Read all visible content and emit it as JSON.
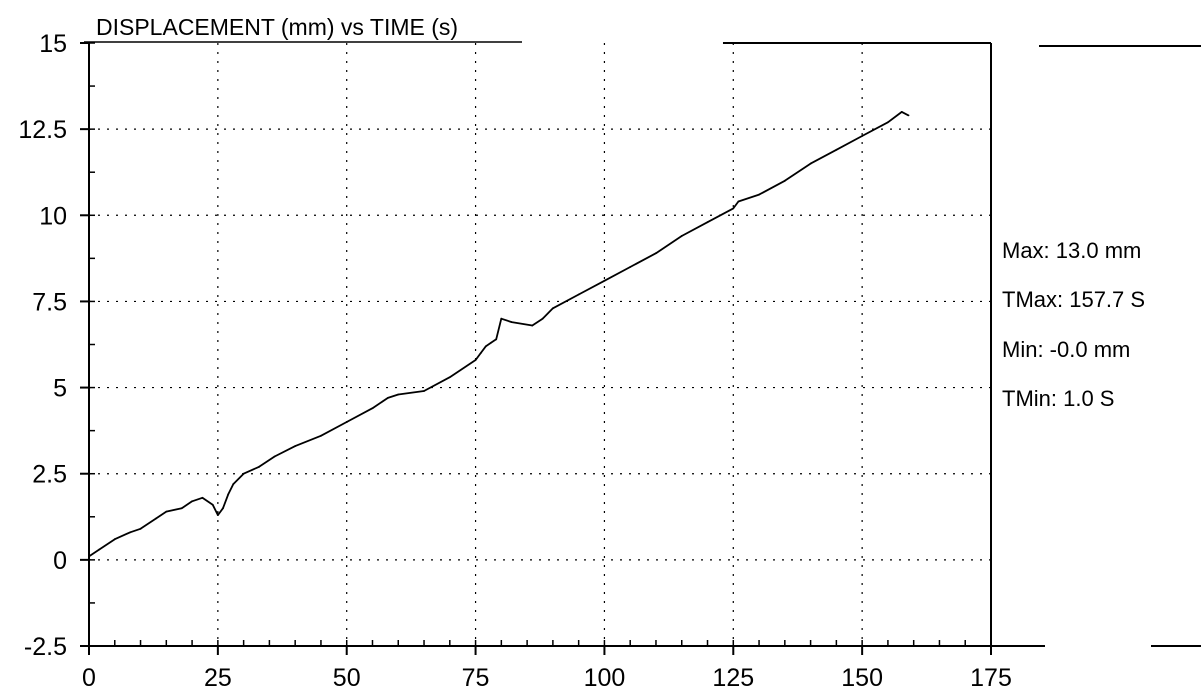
{
  "chart_data": {
    "type": "line",
    "title": "DISPLACEMENT (mm) vs TIME (s)",
    "xlabel": "",
    "ylabel": "",
    "xlim": [
      0,
      175
    ],
    "ylim": [
      -2.5,
      15
    ],
    "x_ticks": [
      0,
      25,
      50,
      75,
      100,
      125,
      150,
      175
    ],
    "x_tick_labels": [
      "0",
      "25",
      "50",
      "75",
      "100",
      "125",
      "150",
      "175"
    ],
    "y_ticks": [
      -2.5,
      0,
      2.5,
      5,
      7.5,
      10,
      12.5,
      15
    ],
    "y_tick_labels": [
      "-2.5",
      "0",
      "2.5",
      "5",
      "7.5",
      "10",
      "12.5",
      "15"
    ],
    "grid": true,
    "legend": "none",
    "series": [
      {
        "color": "#000000",
        "x": [
          0,
          2,
          5,
          8,
          10,
          13,
          15,
          18,
          20,
          22,
          24,
          25,
          26,
          27,
          28,
          30,
          33,
          36,
          40,
          45,
          50,
          55,
          58,
          60,
          65,
          70,
          75,
          76,
          77,
          78,
          79,
          80,
          82,
          86,
          88,
          90,
          95,
          100,
          105,
          110,
          115,
          120,
          125,
          126,
          130,
          135,
          140,
          145,
          150,
          155,
          157.7,
          159
        ],
        "y": [
          0.1,
          0.3,
          0.6,
          0.8,
          0.9,
          1.2,
          1.4,
          1.5,
          1.7,
          1.8,
          1.6,
          1.3,
          1.5,
          1.9,
          2.2,
          2.5,
          2.7,
          3.0,
          3.3,
          3.6,
          4.0,
          4.4,
          4.7,
          4.8,
          4.9,
          5.3,
          5.8,
          6.0,
          6.2,
          6.3,
          6.4,
          7.0,
          6.9,
          6.8,
          7.0,
          7.3,
          7.7,
          8.1,
          8.5,
          8.9,
          9.4,
          9.8,
          10.2,
          10.4,
          10.6,
          11.0,
          11.5,
          11.9,
          12.3,
          12.7,
          13.0,
          12.9
        ]
      }
    ]
  },
  "stats": {
    "max": "Max: 13.0 mm",
    "tmax": "TMax: 157.7 S",
    "min": "Min: -0.0 mm",
    "tmin": "TMin: 1.0 S"
  }
}
